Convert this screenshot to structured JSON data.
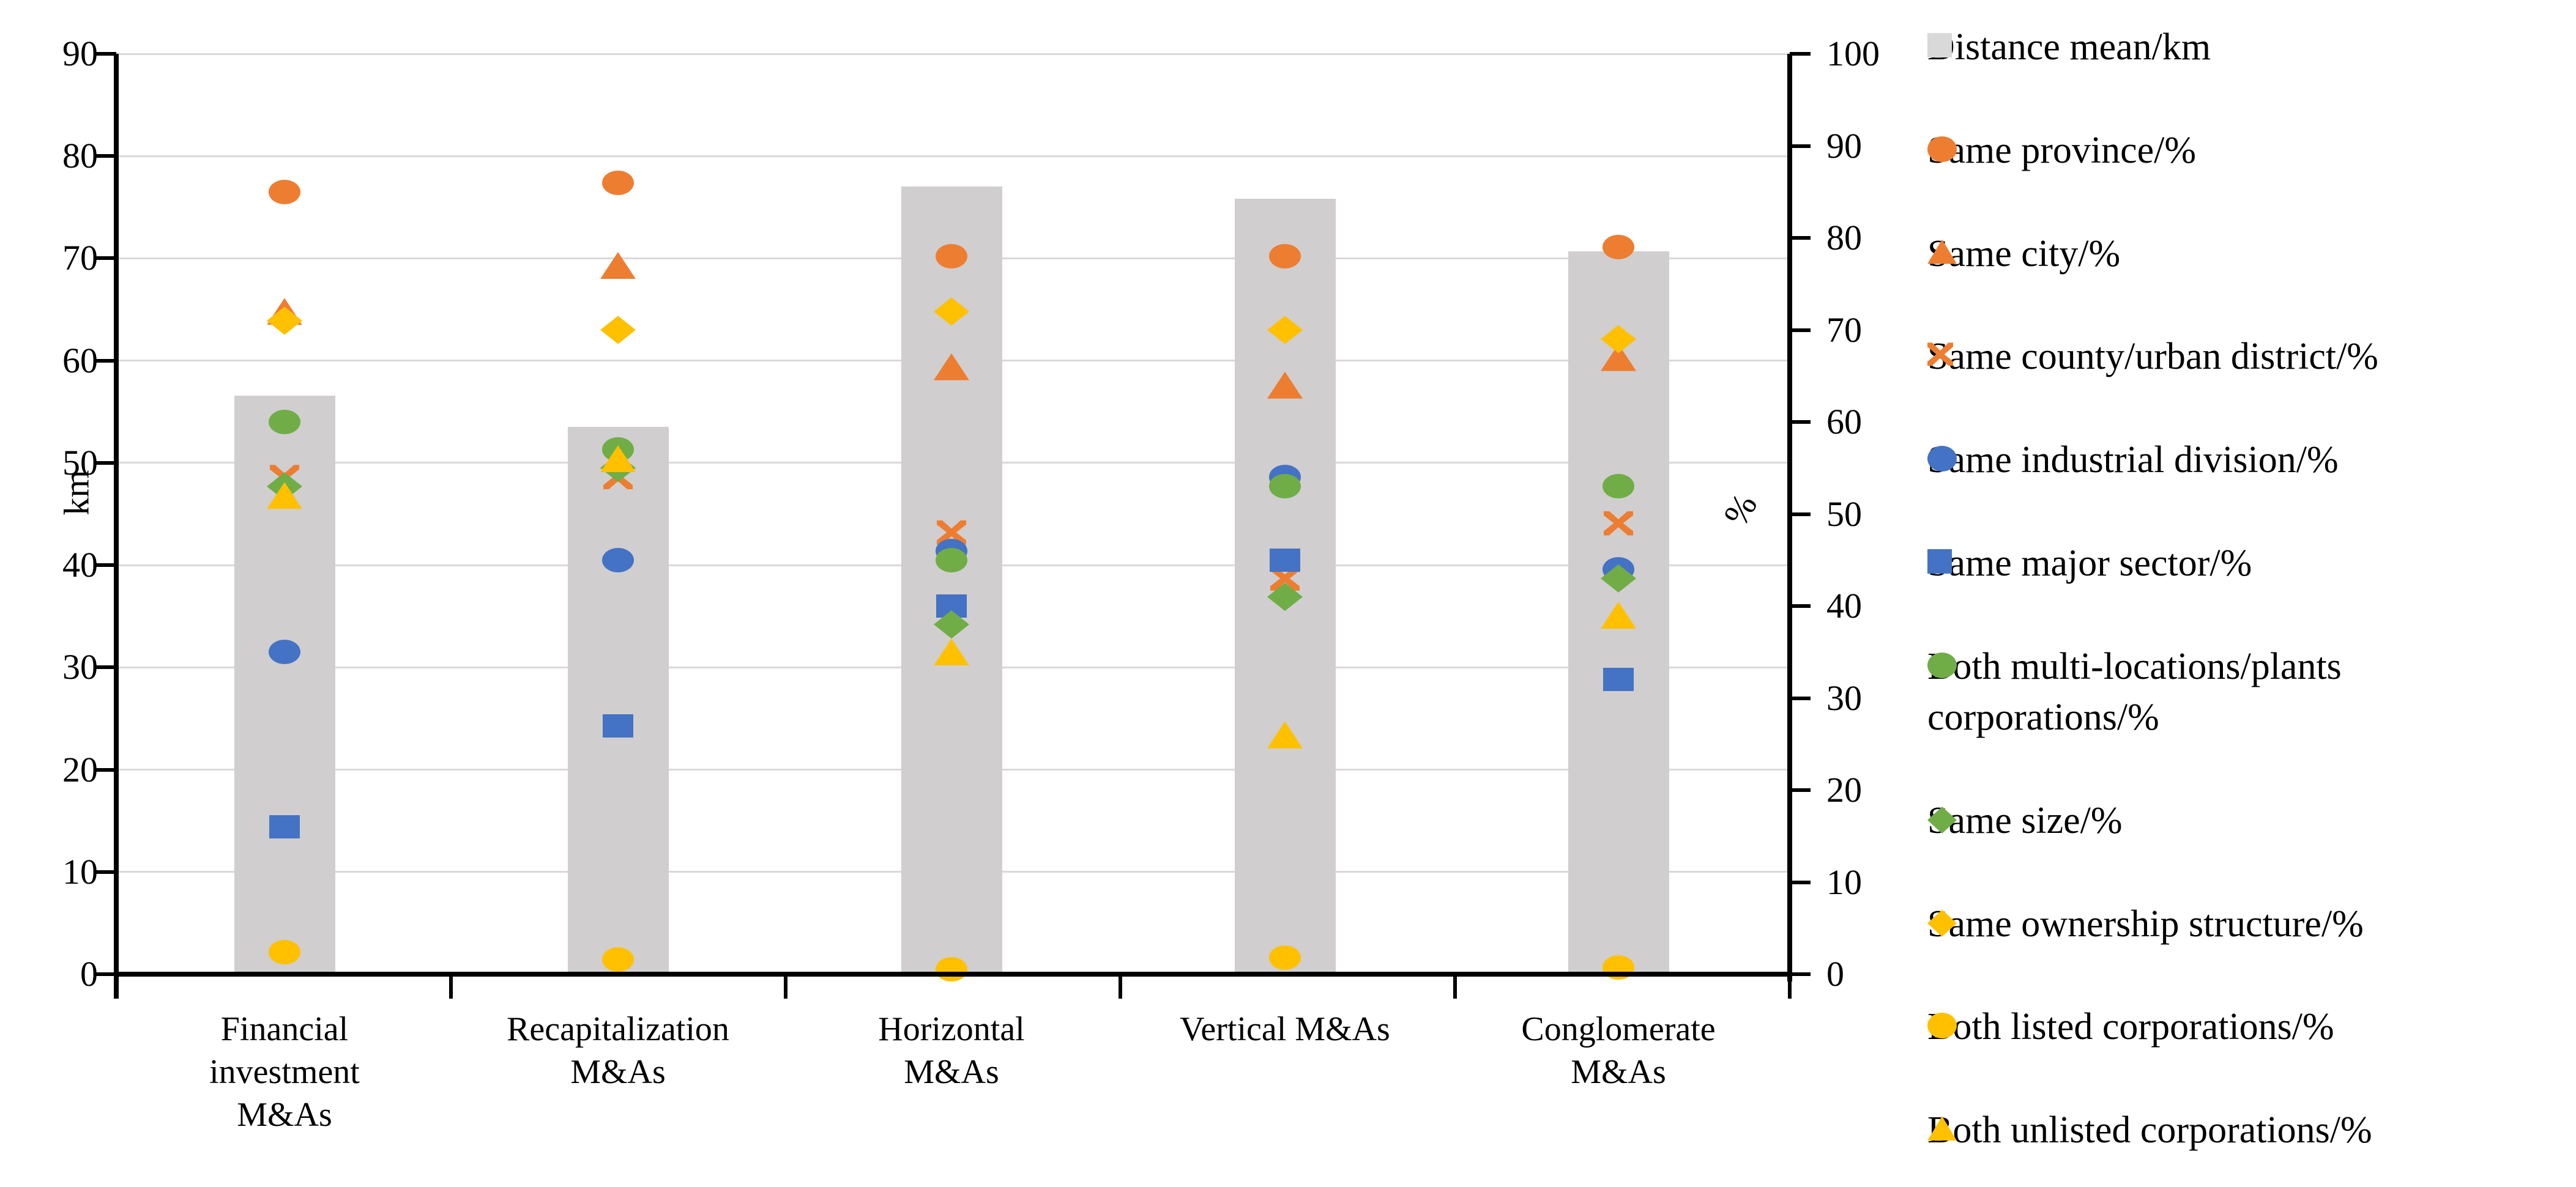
{
  "page": {
    "background": "#ffffff"
  },
  "chart_data": {
    "type": "bar",
    "subtype": "combo-bar-scatter",
    "title": "",
    "categories": [
      "Financial\ninvestment\nM&As",
      "Recapitalization\nM&As",
      "Horizontal\nM&As",
      "Vertical M&As",
      "Conglomerate\nM&As"
    ],
    "left_axis": {
      "label": "km",
      "min": 0,
      "max": 90,
      "tick_step": 10,
      "ticks": [
        0,
        10,
        20,
        30,
        40,
        50,
        60,
        70,
        80,
        90
      ]
    },
    "right_axis": {
      "label": "%",
      "min": 0,
      "max": 100,
      "tick_step": 10,
      "ticks": [
        0,
        10,
        20,
        30,
        40,
        50,
        60,
        70,
        80,
        90,
        100
      ]
    },
    "grid": {
      "show": true,
      "color": "#d9d9d9"
    },
    "legend_position": "right",
    "bar_series": {
      "name": "Distance mean/km",
      "axis": "left",
      "color": "#d0cece",
      "legend_color": "#d9d9d9",
      "marker": "square",
      "values": [
        56.6,
        53.5,
        77.0,
        75.8,
        70.7
      ]
    },
    "series": [
      {
        "name": "Same province/%",
        "marker": "circle",
        "color": "#ed7d31",
        "axis": "right",
        "values": [
          85,
          86,
          78,
          78,
          79
        ]
      },
      {
        "name": "Same city/%",
        "marker": "triangle",
        "color": "#ed7d31",
        "axis": "right",
        "values": [
          72,
          77,
          66,
          64,
          67
        ]
      },
      {
        "name": "Same county/urban district/%",
        "marker": "x",
        "color": "#ed7d31",
        "axis": "right",
        "values": [
          54,
          54,
          48,
          43,
          49
        ]
      },
      {
        "name": "Same industrial division/%",
        "marker": "circle",
        "color": "#4472c4",
        "axis": "right",
        "values": [
          35,
          45,
          46,
          54,
          44
        ]
      },
      {
        "name": "Same major sector/%",
        "marker": "square",
        "color": "#4472c4",
        "axis": "right",
        "values": [
          16,
          27,
          40,
          45,
          32
        ]
      },
      {
        "name": "Both multi-locations/plants corporations/%",
        "marker": "circle",
        "color": "#70ad47",
        "axis": "right",
        "values": [
          60,
          57,
          45,
          53,
          53
        ]
      },
      {
        "name": "Same size/%",
        "marker": "diamond",
        "color": "#70ad47",
        "axis": "right",
        "values": [
          53,
          55,
          38,
          41,
          43
        ]
      },
      {
        "name": "Same ownership structure/%",
        "marker": "diamond",
        "color": "#ffc000",
        "axis": "right",
        "values": [
          71,
          70,
          72,
          70,
          69
        ]
      },
      {
        "name": "Both listed corporations/%",
        "marker": "circle",
        "color": "#ffc000",
        "axis": "right",
        "values": [
          2.4,
          1.6,
          0.5,
          1.8,
          0.7
        ]
      },
      {
        "name": "Both unlisted corporations/%",
        "marker": "triangle",
        "color": "#ffc000",
        "axis": "right",
        "values": [
          52,
          56,
          35,
          26,
          39
        ]
      }
    ]
  },
  "layout_text": {
    "left_axis_unit": "km",
    "right_axis_unit": "%"
  }
}
